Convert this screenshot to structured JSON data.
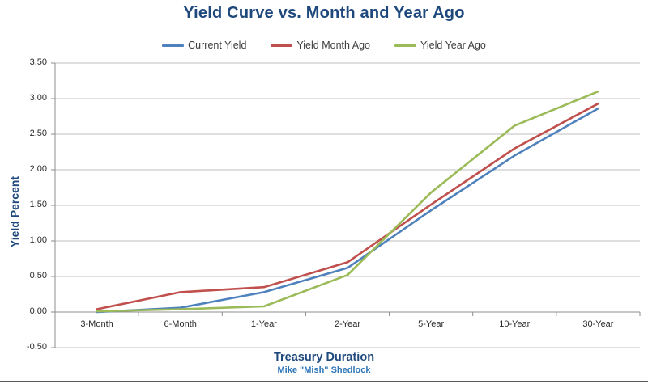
{
  "title": "Yield Curve vs. Month and Year Ago",
  "byline": "Mike \"Mish\" Shedlock",
  "chart_data": {
    "type": "line",
    "title": "Yield Curve vs. Month and Year Ago",
    "xlabel": "Treasury Duration",
    "ylabel": "Yield Percent",
    "categories": [
      "3-Month",
      "6-Month",
      "1-Year",
      "2-Year",
      "5-Year",
      "10-Year",
      "30-Year"
    ],
    "series": [
      {
        "name": "Current Yield",
        "color": "#4F81BD",
        "values": [
          0.0,
          0.06,
          0.28,
          0.62,
          1.43,
          2.2,
          2.86
        ]
      },
      {
        "name": "Yield Month Ago",
        "color": "#C0504D",
        "values": [
          0.04,
          0.28,
          0.35,
          0.7,
          1.51,
          2.3,
          2.93
        ]
      },
      {
        "name": "Yield Year Ago",
        "color": "#9BBB59",
        "values": [
          0.01,
          0.04,
          0.08,
          0.52,
          1.68,
          2.62,
          3.1
        ]
      }
    ],
    "ylim": [
      -0.5,
      3.5
    ],
    "ytick_step": 0.5,
    "ytick_labels": [
      "3.50",
      "3.00",
      "2.50",
      "2.00",
      "1.50",
      "1.00",
      "0.50",
      "0.00",
      "-0.50"
    ],
    "grid": true,
    "legend_position": "top-center",
    "gridline_color": "#BFBFBF",
    "axis_color": "#8C8C8C",
    "title_color": "#1F497D",
    "byline_color": "#2E75B6"
  }
}
